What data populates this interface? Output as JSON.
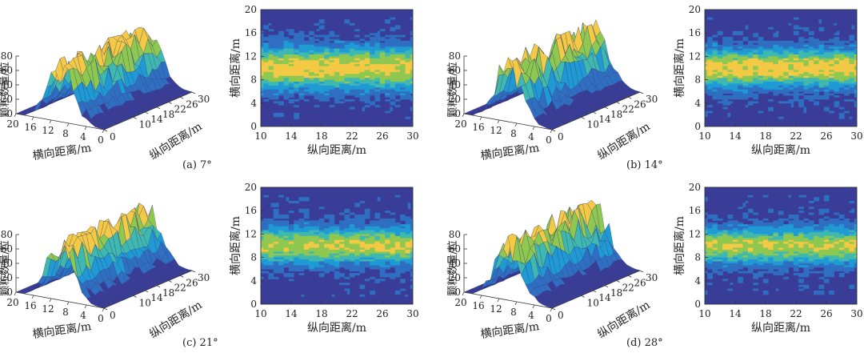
{
  "chart_data": [
    {
      "type": "surface",
      "caption": "(a) 7°",
      "xlabel": "横向距离/m",
      "ylabel": "纵向距离/m",
      "zlabel": "颗粒数量/粒",
      "x_ticks": [
        "20",
        "16",
        "12",
        "8",
        "4",
        "0"
      ],
      "y_ticks": [
        "0",
        "10",
        "14",
        "18",
        "22",
        "26",
        "30"
      ],
      "z_ticks": [
        "0",
        "20",
        "40",
        "60",
        "80"
      ],
      "peak_count": 80,
      "peak_lateral_m": 10
    },
    {
      "type": "heatmap",
      "caption": "(a) 7°",
      "xlabel": "纵向距离/m",
      "ylabel": "横向距离/m",
      "xlim": [
        10,
        30
      ],
      "ylim": [
        0,
        20
      ],
      "x_ticks": [
        "10",
        "14",
        "18",
        "22",
        "26",
        "30"
      ],
      "y_ticks": [
        "0",
        "4",
        "8",
        "12",
        "16",
        "20"
      ],
      "band_center_m": 10,
      "band_halfwidth_m": 3.5,
      "peak_level": 5
    },
    {
      "type": "surface",
      "caption": "(b) 14°",
      "xlabel": "横向距离/m",
      "ylabel": "纵向距离/m",
      "zlabel": "颗粒数量/粒",
      "x_ticks": [
        "20",
        "16",
        "12",
        "8",
        "4",
        "0"
      ],
      "y_ticks": [
        "0",
        "10",
        "14",
        "18",
        "22",
        "26",
        "30"
      ],
      "z_ticks": [
        "0",
        "20",
        "40",
        "60",
        "80"
      ],
      "peak_count": 85,
      "peak_lateral_m": 10
    },
    {
      "type": "heatmap",
      "caption": "(b) 14°",
      "xlabel": "纵向距离/m",
      "ylabel": "横向距离/m",
      "xlim": [
        10,
        30
      ],
      "ylim": [
        0,
        20
      ],
      "x_ticks": [
        "10",
        "14",
        "18",
        "22",
        "26",
        "30"
      ],
      "y_ticks": [
        "0",
        "4",
        "8",
        "12",
        "16",
        "20"
      ],
      "band_center_m": 10,
      "band_halfwidth_m": 3.2,
      "peak_level": 5
    },
    {
      "type": "surface",
      "caption": "(c) 21°",
      "xlabel": "横向距离/m",
      "ylabel": "纵向距离/m",
      "zlabel": "颗粒数量/粒",
      "x_ticks": [
        "20",
        "16",
        "12",
        "8",
        "4",
        "0"
      ],
      "y_ticks": [
        "0",
        "10",
        "14",
        "18",
        "22",
        "26",
        "30"
      ],
      "z_ticks": [
        "0",
        "20",
        "40",
        "60",
        "80"
      ],
      "peak_count": 80,
      "peak_lateral_m": 10
    },
    {
      "type": "heatmap",
      "caption": "(c) 21°",
      "xlabel": "纵向距离/m",
      "ylabel": "横向距离/m",
      "xlim": [
        10,
        30
      ],
      "ylim": [
        0,
        20
      ],
      "x_ticks": [
        "10",
        "14",
        "18",
        "22",
        "26",
        "30"
      ],
      "y_ticks": [
        "0",
        "4",
        "8",
        "12",
        "16",
        "20"
      ],
      "band_center_m": 10,
      "band_halfwidth_m": 3.0,
      "peak_level": 4.5
    },
    {
      "type": "surface",
      "caption": "(d) 28°",
      "xlabel": "横向距离/m",
      "ylabel": "纵向距离/m",
      "zlabel": "颗粒数量/粒",
      "x_ticks": [
        "20",
        "16",
        "12",
        "8",
        "4",
        "0"
      ],
      "y_ticks": [
        "0",
        "10",
        "14",
        "18",
        "22",
        "26",
        "30"
      ],
      "z_ticks": [
        "0",
        "20",
        "40",
        "60",
        "80"
      ],
      "peak_count": 85,
      "peak_lateral_m": 10
    },
    {
      "type": "heatmap",
      "caption": "(d) 28°",
      "xlabel": "纵向距离/m",
      "ylabel": "横向距离/m",
      "xlim": [
        10,
        30
      ],
      "ylim": [
        0,
        20
      ],
      "x_ticks": [
        "10",
        "14",
        "18",
        "22",
        "26",
        "30"
      ],
      "y_ticks": [
        "0",
        "4",
        "8",
        "12",
        "16",
        "20"
      ],
      "band_center_m": 10,
      "band_halfwidth_m": 3.0,
      "peak_level": 4.5
    }
  ],
  "colors": {
    "palette": [
      "#3a3d98",
      "#2f6fc2",
      "#1f9ad4",
      "#3fb9b0",
      "#8ec850",
      "#f3c945"
    ],
    "surface_edge": "#2a2f70",
    "text": "#222222"
  }
}
